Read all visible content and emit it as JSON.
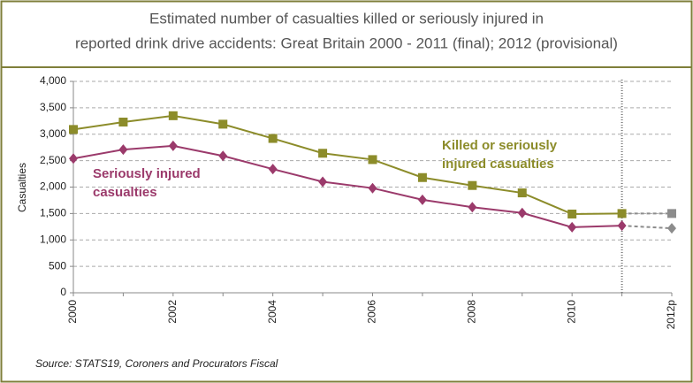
{
  "chart_data": {
    "type": "line",
    "title": [
      "Estimated number of casualties killed or seriously injured in",
      "reported drink drive accidents: Great Britain 2000 - 2011 (final); 2012 (provisional)"
    ],
    "ylabel": "Casualties",
    "source": "Source: STATS19, Coroners and Procurators Fiscal",
    "categories": [
      "2000",
      null,
      "2002",
      null,
      "2004",
      null,
      "2006",
      null,
      "2008",
      null,
      "2010",
      null,
      "2012p"
    ],
    "series": [
      {
        "name": [
          "Killed or seriously",
          "injured casualties"
        ],
        "color": "#8c8c2a",
        "marker": "square",
        "values": [
          3090,
          3230,
          3350,
          3190,
          2920,
          2640,
          2520,
          2180,
          2030,
          1890,
          1490,
          1500,
          1500
        ]
      },
      {
        "name": [
          "Seriously injured",
          "casualties"
        ],
        "color": "#9b3a6b",
        "marker": "diamond",
        "values": [
          2540,
          2710,
          2780,
          2590,
          2340,
          2100,
          1980,
          1760,
          1620,
          1510,
          1240,
          1270,
          1220
        ]
      }
    ],
    "provisional_color": "#8c8c8c",
    "ylim": [
      0,
      4000
    ],
    "yticks": [
      0,
      500,
      {
        "value": 1000,
        "label": "1,000"
      },
      {
        "value": 1500,
        "label": "1,500"
      },
      {
        "value": 2000,
        "label": "2,000"
      },
      {
        "value": 2500,
        "label": "2,500"
      },
      {
        "value": 3000,
        "label": "3,000"
      },
      {
        "value": 3500,
        "label": "3,500"
      },
      {
        "value": 4000,
        "label": "4,000"
      }
    ],
    "grid": true
  }
}
